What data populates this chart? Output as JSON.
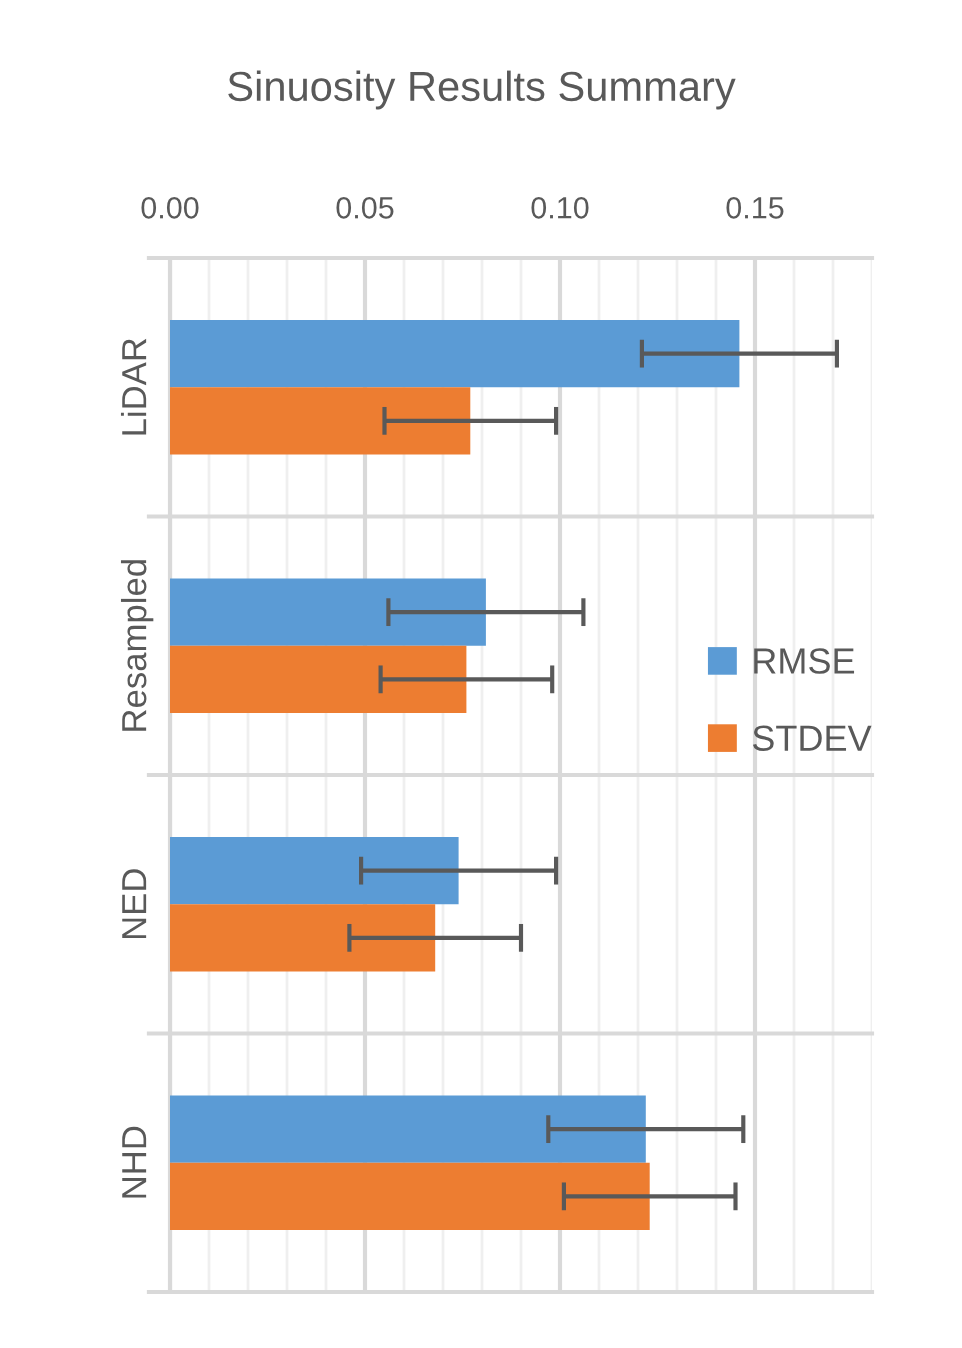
{
  "chart_data": {
    "type": "bar",
    "orientation": "horizontal",
    "title": "Sinuosity Results Summary",
    "categories": [
      "LiDAR",
      "Resampled",
      "NED",
      "NHD"
    ],
    "series": [
      {
        "name": "RMSE",
        "color": "#5b9bd5",
        "values": [
          0.146,
          0.081,
          0.074,
          0.122
        ],
        "errors": [
          0.025,
          0.025,
          0.025,
          0.025
        ]
      },
      {
        "name": "STDEV",
        "color": "#ed7d31",
        "values": [
          0.077,
          0.076,
          0.068,
          0.123
        ],
        "errors": [
          0.022,
          0.022,
          0.022,
          0.022
        ]
      }
    ],
    "xlim": [
      0,
      0.18
    ],
    "xticks": [
      {
        "value": 0,
        "label": "0.00"
      },
      {
        "value": 0.01,
        "label": null
      },
      {
        "value": 0.02,
        "label": null
      },
      {
        "value": 0.03,
        "label": null
      },
      {
        "value": 0.04,
        "label": null
      },
      {
        "value": 0.05,
        "label": "0.05"
      },
      {
        "value": 0.06,
        "label": null
      },
      {
        "value": 0.07,
        "label": null
      },
      {
        "value": 0.08,
        "label": null
      },
      {
        "value": 0.09,
        "label": null
      },
      {
        "value": 0.1,
        "label": "0.10"
      },
      {
        "value": 0.11,
        "label": null
      },
      {
        "value": 0.12,
        "label": null
      },
      {
        "value": 0.13,
        "label": null
      },
      {
        "value": 0.14,
        "label": null
      },
      {
        "value": 0.15,
        "label": "0.15"
      },
      {
        "value": 0.16,
        "label": null
      },
      {
        "value": 0.17,
        "label": null
      },
      {
        "value": 0.18,
        "label": null
      }
    ],
    "grid": true,
    "legend": "right"
  }
}
